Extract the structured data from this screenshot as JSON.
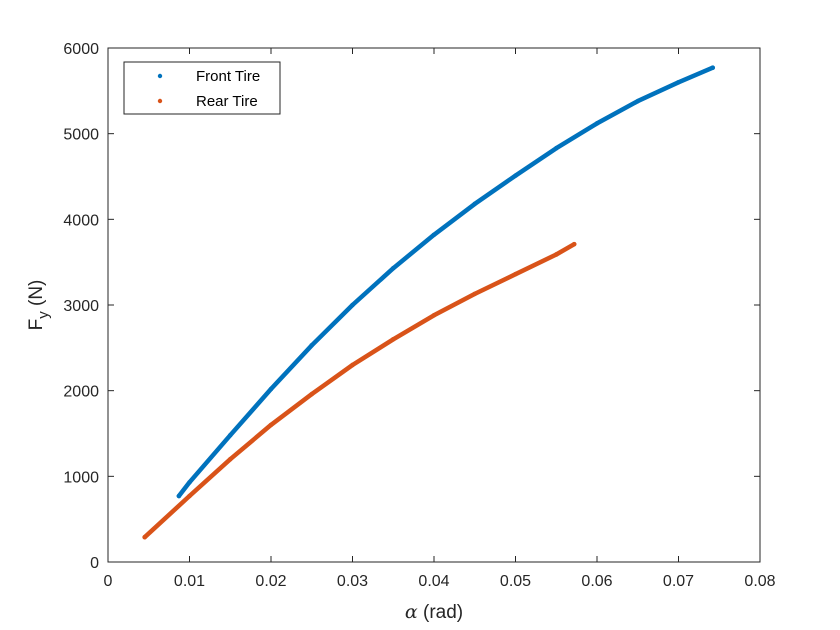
{
  "chart_data": {
    "type": "scatter",
    "xlabel": {
      "symbol": "α",
      "text": " (rad)"
    },
    "ylabel": {
      "main": "F",
      "sub": "y",
      "rest": " (N)"
    },
    "xlim": [
      0,
      0.08
    ],
    "ylim": [
      0,
      6000
    ],
    "xticks": [
      0,
      0.01,
      0.02,
      0.03,
      0.04,
      0.05,
      0.06,
      0.07,
      0.08
    ],
    "xtick_labels": [
      "0",
      "0.01",
      "0.02",
      "0.03",
      "0.04",
      "0.05",
      "0.06",
      "0.07",
      "0.08"
    ],
    "yticks": [
      0,
      1000,
      2000,
      3000,
      4000,
      5000,
      6000
    ],
    "ytick_labels": [
      "0",
      "1000",
      "2000",
      "3000",
      "4000",
      "5000",
      "6000"
    ],
    "grid": false,
    "legend_position": "top-left",
    "series": [
      {
        "name": "Front Tire",
        "color": "#0072BD",
        "x": [
          0.0087,
          0.01,
          0.015,
          0.02,
          0.025,
          0.03,
          0.035,
          0.04,
          0.045,
          0.05,
          0.055,
          0.06,
          0.065,
          0.07,
          0.0742
        ],
        "y": [
          770,
          930,
          1480,
          2020,
          2530,
          3000,
          3430,
          3820,
          4180,
          4510,
          4830,
          5120,
          5380,
          5600,
          5770
        ]
      },
      {
        "name": "Rear Tire",
        "color": "#D95319",
        "x": [
          0.0045,
          0.01,
          0.015,
          0.02,
          0.025,
          0.03,
          0.035,
          0.04,
          0.045,
          0.05,
          0.055,
          0.0572
        ],
        "y": [
          290,
          770,
          1200,
          1600,
          1960,
          2300,
          2600,
          2880,
          3130,
          3360,
          3590,
          3710
        ]
      }
    ]
  }
}
